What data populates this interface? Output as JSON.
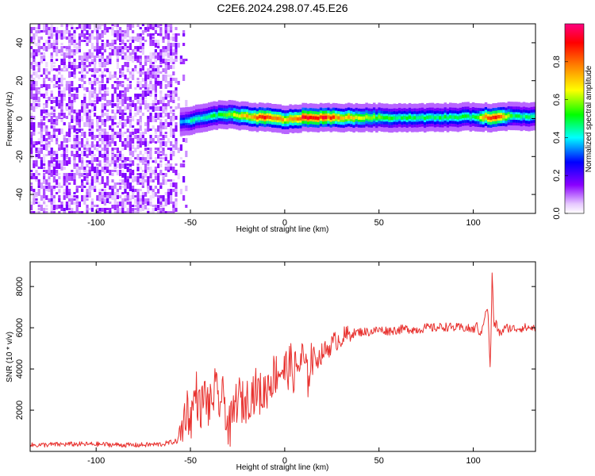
{
  "title": "C2E6.2024.298.07.45.E26",
  "chart_data": [
    {
      "type": "heatmap",
      "xlabel": "Height of straight line (km)",
      "ylabel": "Frequency (Hz)",
      "xlim": [
        -135,
        133
      ],
      "ylim": [
        -50,
        50
      ],
      "xticks": [
        -100,
        -50,
        0,
        50,
        100
      ],
      "yticks": [
        -40,
        -20,
        0,
        20,
        40
      ],
      "colorbar": {
        "label": "Normalized spectral amplitude",
        "range": [
          0.0,
          1.0
        ],
        "ticks": [
          "0.0",
          "0.2",
          "0.4",
          "0.6",
          "0.8"
        ],
        "colormap": [
          "#ffffff",
          "#8a00ff",
          "#0000ff",
          "#00ffff",
          "#00ff00",
          "#ffff00",
          "#ff8000",
          "#ff0000",
          "#ff0080"
        ]
      },
      "noise_region_x": [
        -135,
        -56
      ],
      "noise_level": 0.15,
      "ridge": [
        {
          "x": -56,
          "f": -1.5,
          "amp": 0.35
        },
        {
          "x": -50,
          "f": -1,
          "amp": 0.45
        },
        {
          "x": -45,
          "f": 0,
          "amp": 0.45
        },
        {
          "x": -40,
          "f": 1,
          "amp": 0.5
        },
        {
          "x": -35,
          "f": 2,
          "amp": 0.5
        },
        {
          "x": -30,
          "f": 2,
          "amp": 0.6
        },
        {
          "x": -20,
          "f": 1,
          "amp": 0.75
        },
        {
          "x": -10,
          "f": 0.5,
          "amp": 0.9
        },
        {
          "x": 0,
          "f": -0.5,
          "amp": 0.7
        },
        {
          "x": 10,
          "f": 0.5,
          "amp": 0.95
        },
        {
          "x": 20,
          "f": 0.5,
          "amp": 0.9
        },
        {
          "x": 40,
          "f": 0.5,
          "amp": 0.65
        },
        {
          "x": 60,
          "f": 0.5,
          "amp": 0.5
        },
        {
          "x": 80,
          "f": 0.5,
          "amp": 0.5
        },
        {
          "x": 100,
          "f": 1,
          "amp": 0.5
        },
        {
          "x": 110,
          "f": 0.5,
          "amp": 0.95
        },
        {
          "x": 120,
          "f": 1.5,
          "amp": 0.5
        },
        {
          "x": 133,
          "f": 1,
          "amp": 0.45
        }
      ]
    },
    {
      "type": "line",
      "xlabel": "Height of straight line (km)",
      "ylabel": "SNR (10 * v/v)",
      "xlim": [
        -135,
        133
      ],
      "ylim": [
        0,
        9200
      ],
      "xticks": [
        -100,
        -50,
        0,
        50,
        100
      ],
      "yticks": [
        2000,
        4000,
        6000,
        8000
      ],
      "color": "#e8322f",
      "series": [
        {
          "x": [
            -135,
            -115,
            -100,
            -80,
            -65,
            -57,
            -55,
            -52,
            -50,
            -47,
            -45,
            -42,
            -40,
            -37,
            -35,
            -32,
            -30,
            -28,
            -26,
            -24,
            -22,
            -20,
            -18,
            -15,
            -12,
            -10,
            -8,
            -5,
            -2,
            0,
            3,
            5,
            8,
            10,
            12,
            14,
            16,
            18,
            20,
            23,
            26,
            30,
            35,
            40,
            45,
            50,
            55,
            60,
            65,
            70,
            75,
            80,
            85,
            90,
            95,
            100,
            102,
            104,
            106,
            107,
            108,
            109,
            110,
            111,
            112,
            114,
            116,
            118,
            122,
            126,
            130,
            133
          ],
          "y": [
            300,
            350,
            350,
            300,
            350,
            500,
            900,
            2200,
            1500,
            3000,
            2000,
            2800,
            2000,
            3000,
            2400,
            2600,
            1000,
            1400,
            2400,
            2600,
            2300,
            2500,
            2800,
            3000,
            2700,
            3000,
            3400,
            3800,
            4000,
            3900,
            4200,
            3800,
            4300,
            4500,
            3400,
            4600,
            4600,
            4500,
            4800,
            5000,
            5300,
            5500,
            5700,
            5800,
            5800,
            5900,
            5850,
            5900,
            5950,
            5900,
            6000,
            6000,
            6050,
            6000,
            6000,
            5900,
            6100,
            5600,
            6600,
            7000,
            6500,
            3800,
            8600,
            6000,
            6200,
            5700,
            5900,
            6000,
            5950,
            6000,
            6000,
            6000
          ]
        }
      ]
    }
  ]
}
